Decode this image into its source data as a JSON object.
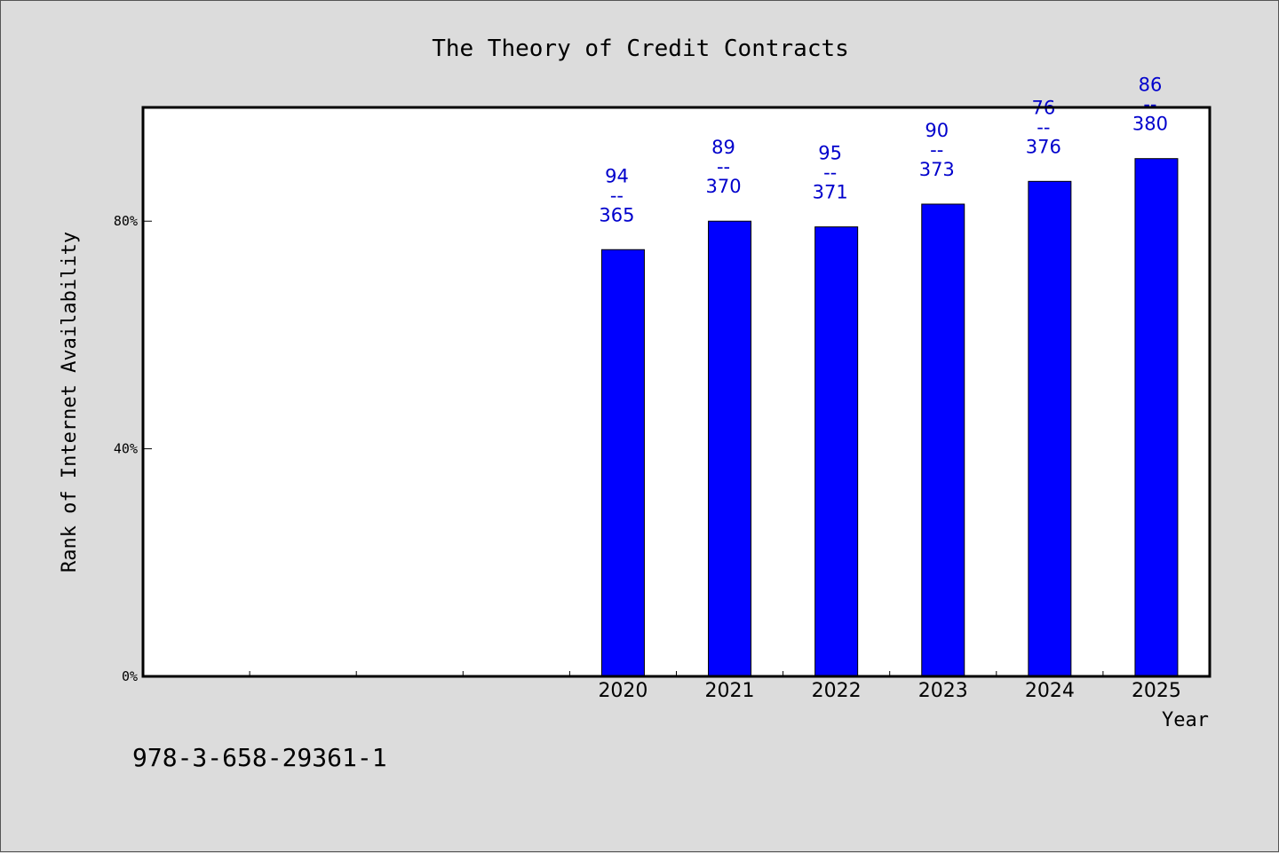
{
  "chart_data": {
    "type": "bar",
    "title": "The Theory of Credit Contracts",
    "xlabel": "Year",
    "ylabel": "Rank of Internet Availability",
    "categories": [
      "",
      "",
      "",
      "",
      "2020",
      "2021",
      "2022",
      "2023",
      "2024",
      "2025"
    ],
    "values": [
      null,
      null,
      null,
      null,
      75,
      80,
      79,
      83,
      87,
      91
    ],
    "data_labels": [
      null,
      null,
      null,
      null,
      [
        "94",
        "--",
        "365"
      ],
      [
        "89",
        "--",
        "370"
      ],
      [
        "95",
        "--",
        "371"
      ],
      [
        "90",
        "--",
        "373"
      ],
      [
        "76",
        "--",
        "376"
      ],
      [
        "86",
        "--",
        "380"
      ]
    ],
    "ylim": [
      0,
      100
    ],
    "yticks": [
      0,
      40,
      80
    ],
    "ytick_labels": [
      "0%",
      "40%",
      "80%"
    ],
    "bar_color": "#0000ff",
    "label_color": "#0000cc",
    "grid": false,
    "legend": "none"
  },
  "footer": {
    "isbn": "978-3-658-29361-1"
  }
}
